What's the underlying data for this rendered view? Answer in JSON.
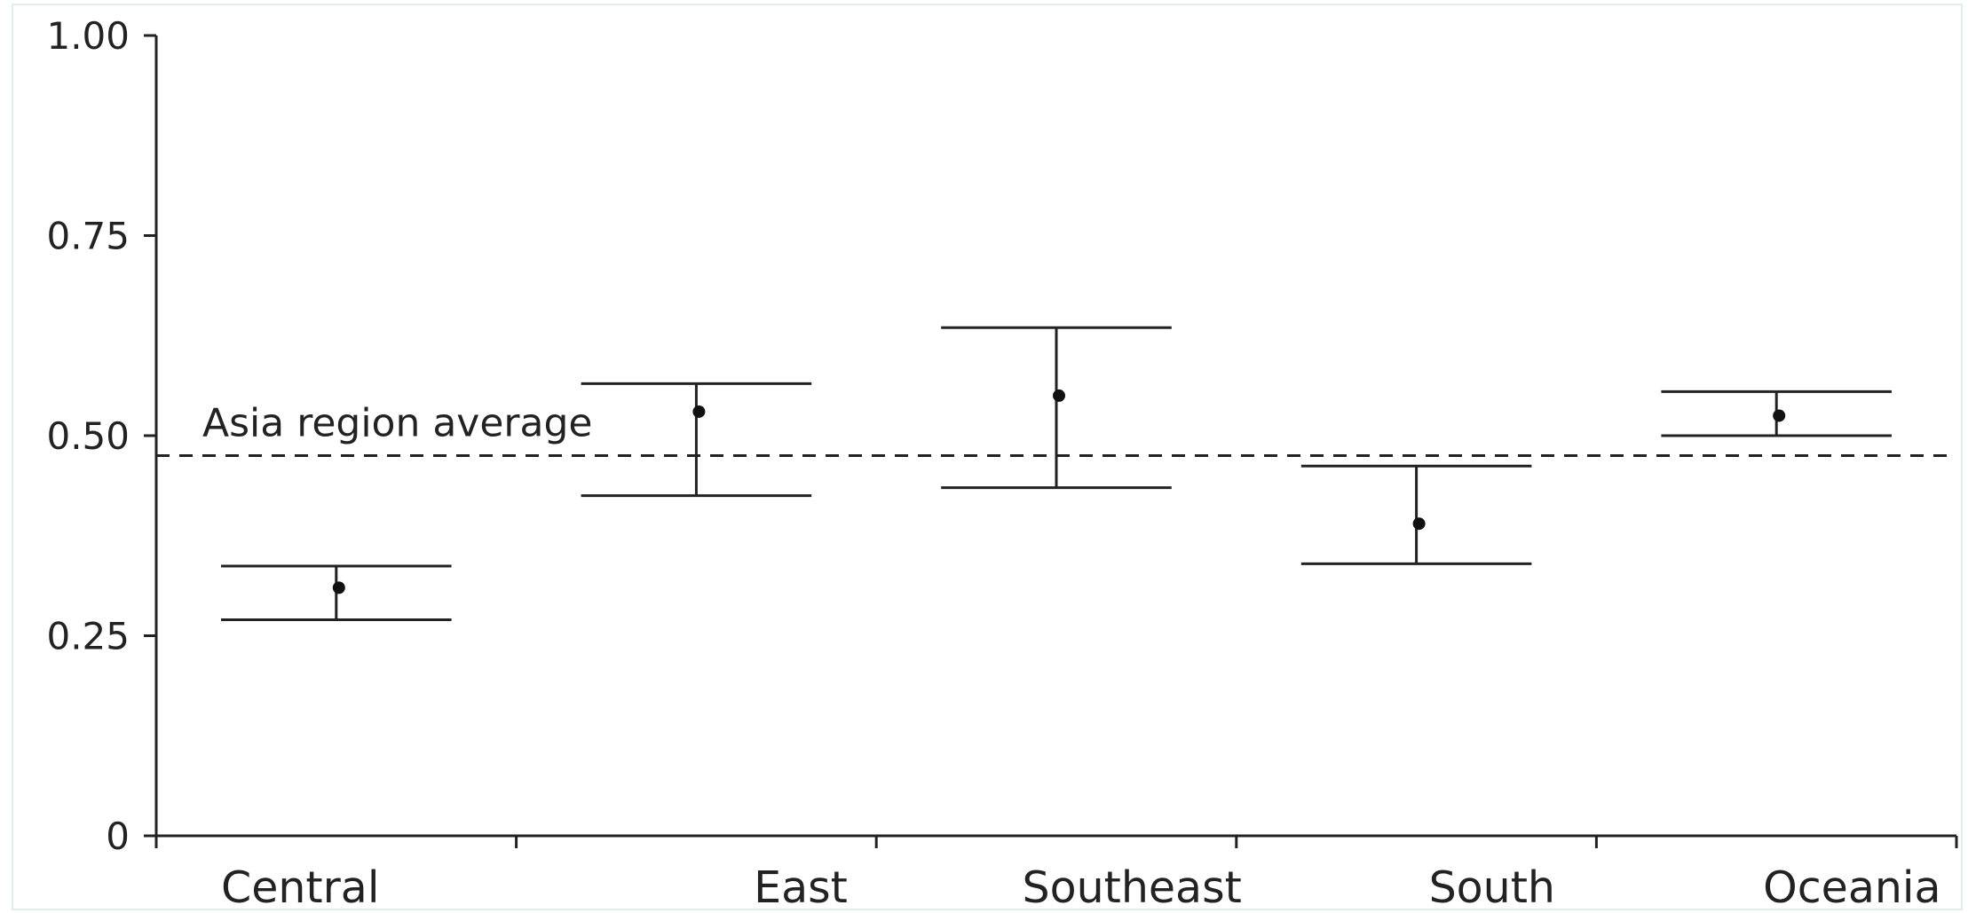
{
  "chart_data": {
    "type": "scatter",
    "title": "",
    "xlabel": "",
    "ylabel": "",
    "ylim": [
      0,
      1
    ],
    "yticks": [
      0,
      0.25,
      0.5,
      0.75,
      1.0
    ],
    "ytick_labels": [
      "0",
      "0.25",
      "0.50",
      "0.75",
      "1.00"
    ],
    "categories": [
      "Central",
      "East",
      "Southeast",
      "South",
      "Oceania"
    ],
    "estimates": [
      0.31,
      0.53,
      0.55,
      0.39,
      0.525
    ],
    "ci_lower": [
      0.27,
      0.425,
      0.435,
      0.34,
      0.5
    ],
    "ci_upper": [
      0.337,
      0.565,
      0.635,
      0.462,
      0.555
    ],
    "reference_line": {
      "label": "Asia region average",
      "value": 0.475,
      "style": "dashed"
    },
    "grid": false,
    "legend": "none",
    "colors": {
      "ink": "#222222",
      "point": "#111111",
      "background": "#ffffff"
    }
  }
}
